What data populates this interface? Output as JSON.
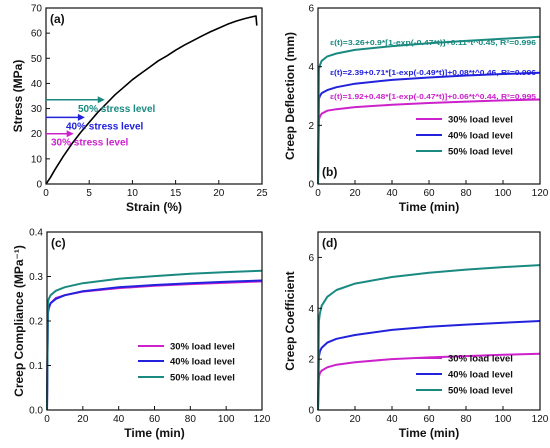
{
  "chart_data": [
    {
      "id": "a",
      "type": "line",
      "panel_label": "(a)",
      "xlabel": "Strain (%)",
      "ylabel": "Stress (MPa)",
      "xlim": [
        0,
        25
      ],
      "ylim": [
        0,
        70
      ],
      "xticks": [
        0,
        5,
        10,
        15,
        20,
        25
      ],
      "yticks": [
        0,
        10,
        20,
        30,
        40,
        50,
        60,
        70
      ],
      "series": [
        {
          "color": "#000000",
          "x": [
            0,
            0.5,
            1,
            2,
            3,
            4,
            5,
            6,
            7,
            8,
            9,
            10,
            11,
            12,
            13,
            14,
            15,
            16,
            17,
            18,
            19,
            20,
            21,
            22,
            23,
            24,
            24.3,
            24.4
          ],
          "y": [
            0,
            2.5,
            5.5,
            11,
            16,
            20.5,
            24.5,
            28.5,
            32,
            35.5,
            38.5,
            41.5,
            44,
            46.5,
            49,
            51,
            53.2,
            55.2,
            57,
            58.8,
            60.5,
            62,
            63.5,
            64.8,
            65.8,
            66.6,
            66.8,
            63
          ]
        }
      ],
      "annotations": [
        {
          "text": "50% stress level",
          "y": 33.5,
          "color": "#1a8a80",
          "arrow_to_x": 6.8
        },
        {
          "text": "40% stress level",
          "y": 26.5,
          "color": "#2222dd",
          "arrow_to_x": 4.5
        },
        {
          "text": "30% stress level",
          "y": 20,
          "color": "#cc22cc",
          "arrow_to_x": 3.2
        }
      ]
    },
    {
      "id": "b",
      "type": "line",
      "panel_label": "(b)",
      "xlabel": "Time (min)",
      "ylabel": "Creep Deflection (mm)",
      "xlim": [
        0,
        120
      ],
      "ylim": [
        0,
        6
      ],
      "xticks": [
        0,
        20,
        40,
        60,
        80,
        100,
        120
      ],
      "yticks": [
        0,
        2,
        4,
        6
      ],
      "legend_position": "bottom-right",
      "series": [
        {
          "name": "30% load level",
          "color": "#cc22cc",
          "initial": 1.92,
          "x": [
            0,
            0.5,
            1,
            2,
            5,
            10,
            20,
            40,
            60,
            80,
            100,
            120
          ],
          "y": [
            0,
            2.2,
            2.3,
            2.4,
            2.5,
            2.55,
            2.62,
            2.7,
            2.76,
            2.81,
            2.85,
            2.88
          ]
        },
        {
          "name": "40% load level",
          "color": "#2222dd",
          "initial": 2.39,
          "x": [
            0,
            0.5,
            1,
            2,
            5,
            10,
            20,
            40,
            60,
            80,
            100,
            120
          ],
          "y": [
            0,
            2.9,
            3.0,
            3.1,
            3.2,
            3.3,
            3.42,
            3.55,
            3.63,
            3.7,
            3.75,
            3.79
          ]
        },
        {
          "name": "50% load level",
          "color": "#1a8a80",
          "initial": 3.26,
          "x": [
            0,
            0.5,
            1,
            2,
            5,
            10,
            20,
            40,
            60,
            80,
            100,
            120
          ],
          "y": [
            0,
            3.9,
            4.05,
            4.2,
            4.35,
            4.45,
            4.57,
            4.7,
            4.8,
            4.88,
            4.95,
            5.02
          ]
        }
      ],
      "annotations": [
        {
          "text": "ε(t)=3.26+0.9*[1-exp(-0.47*t)]+0.11*t^0.45, R²=0.996",
          "color": "#1a8a80"
        },
        {
          "text": "ε(t)=2.39+0.71*[1-exp(-0.49*t)]+0.08*t^0.46, R²=0.996",
          "color": "#2222dd"
        },
        {
          "text": "ε(t)=1.92+0.48*[1-exp(-0.47*t)]+0.06*t^0.44, R²=0.995",
          "color": "#cc22cc"
        }
      ]
    },
    {
      "id": "c",
      "type": "line",
      "panel_label": "(c)",
      "xlabel": "Time (min)",
      "ylabel": "Creep Compliance (MPa⁻¹)",
      "xlim": [
        0,
        120
      ],
      "ylim": [
        0,
        0.4
      ],
      "xticks": [
        0,
        20,
        40,
        60,
        80,
        100,
        120
      ],
      "yticks": [
        0,
        0.1,
        0.2,
        0.3,
        0.4
      ],
      "ytick_labels": [
        "0.0",
        "0.1",
        "0.2",
        "0.3",
        "0.4"
      ],
      "legend_position": "bottom-right",
      "series": [
        {
          "name": "30% load level",
          "color": "#cc22cc",
          "x": [
            0,
            0.5,
            1,
            2,
            5,
            10,
            20,
            40,
            60,
            80,
            100,
            120
          ],
          "y": [
            0,
            0.215,
            0.228,
            0.24,
            0.252,
            0.258,
            0.266,
            0.274,
            0.279,
            0.283,
            0.286,
            0.289
          ]
        },
        {
          "name": "40% load level",
          "color": "#2222dd",
          "x": [
            0,
            0.5,
            1,
            2,
            5,
            10,
            20,
            40,
            60,
            80,
            100,
            120
          ],
          "y": [
            0,
            0.222,
            0.232,
            0.24,
            0.25,
            0.258,
            0.267,
            0.276,
            0.281,
            0.285,
            0.288,
            0.291
          ]
        },
        {
          "name": "50% load level",
          "color": "#1a8a80",
          "x": [
            0,
            0.5,
            1,
            2,
            5,
            10,
            20,
            40,
            60,
            80,
            100,
            120
          ],
          "y": [
            0,
            0.24,
            0.25,
            0.258,
            0.268,
            0.276,
            0.285,
            0.295,
            0.301,
            0.306,
            0.31,
            0.313
          ]
        }
      ]
    },
    {
      "id": "d",
      "type": "line",
      "panel_label": "(d)",
      "xlabel": "Time (min)",
      "ylabel": "Creep Coefficient",
      "xlim": [
        0,
        120
      ],
      "ylim": [
        0,
        7
      ],
      "xticks": [
        0,
        20,
        40,
        60,
        80,
        100,
        120
      ],
      "yticks": [
        0,
        2,
        4,
        6
      ],
      "legend_position": "bottom-right",
      "series": [
        {
          "name": "30% load level",
          "color": "#cc22cc",
          "x": [
            0,
            0.5,
            1,
            2,
            5,
            10,
            20,
            40,
            60,
            80,
            100,
            120
          ],
          "y": [
            0,
            1.3,
            1.45,
            1.55,
            1.68,
            1.78,
            1.88,
            2.0,
            2.07,
            2.12,
            2.17,
            2.21
          ]
        },
        {
          "name": "40% load level",
          "color": "#2222dd",
          "x": [
            0,
            0.5,
            1,
            2,
            5,
            10,
            20,
            40,
            60,
            80,
            100,
            120
          ],
          "y": [
            0,
            2.1,
            2.3,
            2.45,
            2.65,
            2.8,
            2.95,
            3.15,
            3.27,
            3.36,
            3.43,
            3.5
          ]
        },
        {
          "name": "50% load level",
          "color": "#1a8a80",
          "x": [
            0,
            0.5,
            1,
            2,
            5,
            10,
            20,
            40,
            60,
            80,
            100,
            120
          ],
          "y": [
            0,
            3.5,
            3.8,
            4.1,
            4.45,
            4.72,
            4.97,
            5.23,
            5.4,
            5.52,
            5.62,
            5.7
          ]
        }
      ]
    }
  ]
}
